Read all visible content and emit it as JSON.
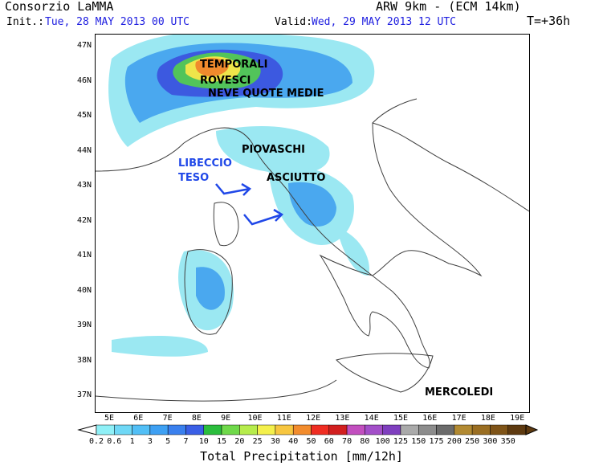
{
  "header": {
    "org": "Consorzio LaMMA",
    "model": "ARW 9km - (ECM 14km)",
    "init_label": "Init.:",
    "init_value": "Tue, 28 MAY 2013  00 UTC",
    "valid_label": "Valid:",
    "valid_value": "Wed, 29 MAY 2013  12 UTC",
    "lead": "T=+36h"
  },
  "axes": {
    "lat_labels": [
      "47N",
      "46N",
      "45N",
      "44N",
      "43N",
      "42N",
      "41N",
      "40N",
      "39N",
      "38N",
      "37N"
    ],
    "lon_labels": [
      "5E",
      "6E",
      "7E",
      "8E",
      "9E",
      "10E",
      "11E",
      "12E",
      "13E",
      "14E",
      "15E",
      "16E",
      "17E",
      "18E",
      "19E"
    ]
  },
  "annotations": {
    "temporali": "TEMPORALI",
    "rovesci": "ROVESCI",
    "neve": "NEVE QUOTE MEDIE",
    "piovaschi": "PIOVASCHI",
    "libeccio": "LIBECCIO",
    "teso": "TESO",
    "asciutto": "ASCIUTTO",
    "day": "MERCOLEDI"
  },
  "legend": {
    "title": "Total Precipitation [mm/12h]",
    "thresholds": [
      "0.2",
      "0.6",
      "1",
      "3",
      "5",
      "7",
      "10",
      "15",
      "20",
      "25",
      "30",
      "40",
      "50",
      "60",
      "70",
      "80",
      "100",
      "125",
      "150",
      "175",
      "200",
      "250",
      "300",
      "350"
    ],
    "colors": [
      "#8ff0f7",
      "#6fd8f6",
      "#52bff6",
      "#3ea0f3",
      "#3a80ee",
      "#3a5fe6",
      "#2bbd3d",
      "#6fd94a",
      "#b6ec4c",
      "#f4f04c",
      "#f7c640",
      "#f28c2d",
      "#ef2d22",
      "#d21f1f",
      "#c24fbf",
      "#a34fc9",
      "#7f3fbf",
      "#aaaaaa",
      "#8c8c8c",
      "#6b6b6b",
      "#b28a32",
      "#9a6e22",
      "#7f5418",
      "#5e3a10"
    ]
  },
  "colors": {
    "land_line": "#404040",
    "precip_light": "#9be8f2",
    "precip_mid": "#4aa8ef",
    "precip_heavy": "#3c59e0",
    "precip_green": "#52c45a",
    "precip_yellow": "#efe54a",
    "precip_orange": "#f08a2d",
    "annotation_blue": "#2048e8"
  }
}
